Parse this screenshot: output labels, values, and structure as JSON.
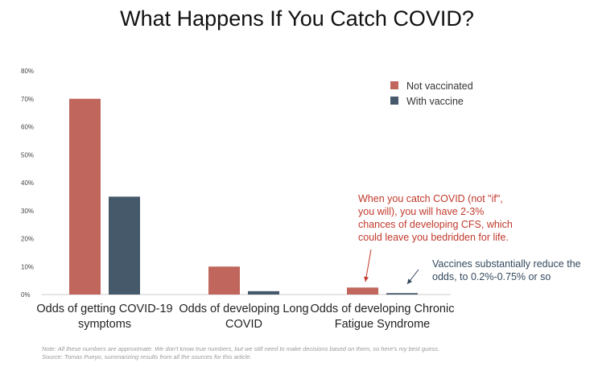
{
  "chart_data": {
    "type": "bar",
    "title": "What Happens If You Catch COVID?",
    "categories": [
      [
        "Odds of getting COVID-19",
        "symptoms"
      ],
      [
        "Odds of developing Long",
        "COVID"
      ],
      [
        "Odds of developing Chronic",
        "Fatigue Syndrome"
      ]
    ],
    "series": [
      {
        "name": "Not vaccinated",
        "color": "#c0665d",
        "values": [
          70,
          10,
          2.5
        ]
      },
      {
        "name": "With vaccine",
        "color": "#45596b",
        "values": [
          35,
          1.2,
          0.5
        ]
      }
    ],
    "ylim": [
      0,
      80
    ],
    "yticks": [
      "0%",
      "10%",
      "20%",
      "30%",
      "40%",
      "50%",
      "60%",
      "70%",
      "80%"
    ],
    "legend_position": "top-right",
    "grid": false,
    "annotations": [
      {
        "lines": [
          "When you catch COVID (not \"if\",",
          "you will), you will have 2-3%",
          "chances of developing CFS, which",
          "could leave you bedridden for life."
        ],
        "color": "#c0392b"
      },
      {
        "lines": [
          "Vaccines substantially reduce the",
          "odds, to 0.2%-0.75% or so"
        ],
        "color": "#34495e"
      }
    ]
  },
  "footnote": {
    "line1": "Note: All these numbers are approximate. We don't know true numbers, but we still need to make decisions based on them, so here's my best guess.",
    "line2": "Source: Tomas Pueyo, summarizing results from all the sources for this article."
  }
}
